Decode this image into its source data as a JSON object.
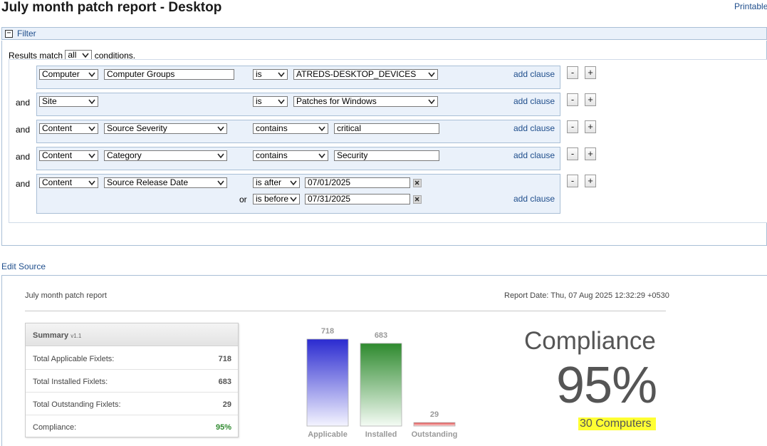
{
  "page": {
    "title": "July month patch report - Desktop",
    "printable_label": "Printable"
  },
  "filter": {
    "toggle_symbol": "−",
    "label": "Filter",
    "results_prefix": "Results match",
    "match_mode": "all",
    "results_suffix": "conditions.",
    "add_clause_label": "add clause",
    "remove_label": "-",
    "add_label": "+",
    "connector": "and",
    "or_label": "or",
    "clauses": [
      {
        "category": "Computer",
        "property": "Computer Groups",
        "operator": "is",
        "value": "ATREDS-DESKTOP_DEVICES"
      },
      {
        "category": "Site",
        "operator": "is",
        "value": "Patches for Windows"
      },
      {
        "category": "Content",
        "property": "Source Severity",
        "operator": "contains",
        "value": "critical"
      },
      {
        "category": "Content",
        "property": "Category",
        "operator": "contains",
        "value": "Security"
      },
      {
        "category": "Content",
        "property": "Source Release Date",
        "operator": "is after",
        "value": "07/01/2025",
        "operator2": "is before",
        "value2": "07/31/2025"
      }
    ]
  },
  "edit_source_label": "Edit Source",
  "report": {
    "name": "July month patch report",
    "date": "Report Date: Thu, 07 Aug 2025 12:32:29 +0530",
    "summary": {
      "title": "Summary",
      "version": "v1.1",
      "rows": [
        {
          "label": "Total Applicable Fixlets:",
          "value": "718"
        },
        {
          "label": "Total Installed Fixlets:",
          "value": "683"
        },
        {
          "label": "Total Outstanding Fixlets:",
          "value": "29"
        },
        {
          "label": "Compliance:",
          "value": "95%"
        }
      ]
    },
    "compliance_heading": "Compliance",
    "compliance_value": "95%",
    "computers": "30 Computers"
  },
  "chart_data": {
    "type": "bar",
    "categories": [
      "Applicable",
      "Installed",
      "Outstanding"
    ],
    "values": [
      718,
      683,
      29
    ],
    "ylim": [
      0,
      718
    ],
    "colors": [
      "#2a2ad0",
      "#2e8a2e",
      "#e04040"
    ]
  }
}
